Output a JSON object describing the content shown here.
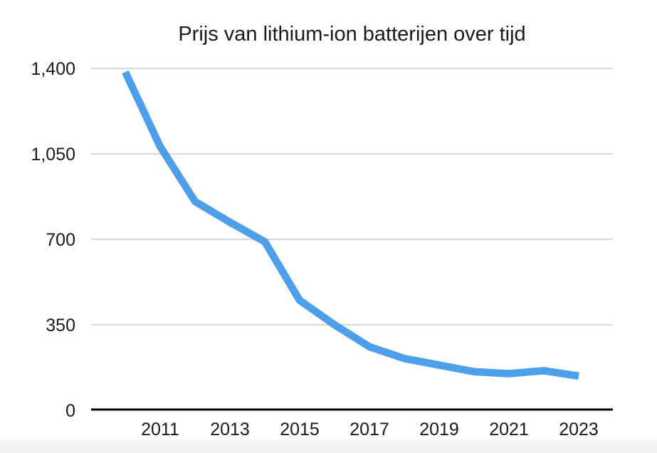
{
  "chart_data": {
    "type": "line",
    "title": "Prijs van lithium-ion batterijen over tijd",
    "x": [
      2010,
      2011,
      2012,
      2013,
      2014,
      2015,
      2016,
      2017,
      2018,
      2019,
      2020,
      2021,
      2022,
      2023
    ],
    "values": [
      1385,
      1080,
      855,
      770,
      690,
      450,
      350,
      260,
      212,
      185,
      158,
      150,
      162,
      140
    ],
    "xlabel": "",
    "ylabel": "",
    "ylim": [
      0,
      1400
    ],
    "y_ticks": [
      0,
      350,
      700,
      1050,
      1400
    ],
    "y_tick_labels": [
      "0",
      "350",
      "700",
      "1,050",
      "1,400"
    ],
    "x_tick_years": [
      2011,
      2013,
      2015,
      2017,
      2019,
      2021,
      2023
    ],
    "x_tick_labels": [
      "2011",
      "2013",
      "2015",
      "2017",
      "2019",
      "2021",
      "2023"
    ],
    "grid": "horizontal-only",
    "legend": "none",
    "line_color": "#4D9FEA",
    "line_width": 10.5,
    "gridline_color": "#C8C8C8",
    "axis_color": "#000000",
    "text_color": "#1A1A1A",
    "background_color": "#FFFFFF",
    "bottom_strip_color": "#F3F3F3"
  }
}
